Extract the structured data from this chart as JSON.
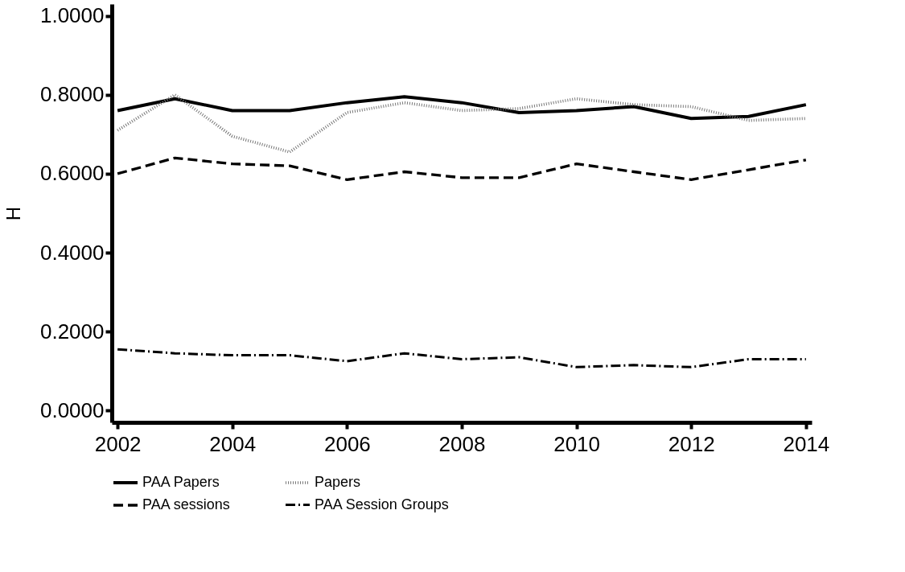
{
  "chart_data": {
    "type": "line",
    "ylabel": "H",
    "x": [
      2002,
      2003,
      2004,
      2005,
      2006,
      2007,
      2008,
      2009,
      2010,
      2011,
      2012,
      2013,
      2014
    ],
    "series": [
      {
        "name": "PAA Papers",
        "color": "#000000",
        "line_style": "solid",
        "values": [
          0.76,
          0.79,
          0.76,
          0.76,
          0.78,
          0.795,
          0.78,
          0.755,
          0.76,
          0.77,
          0.74,
          0.745,
          0.775
        ]
      },
      {
        "name": "Papers",
        "color": "#777777",
        "line_style": "dotted",
        "values": [
          0.71,
          0.8,
          0.695,
          0.655,
          0.755,
          0.78,
          0.76,
          0.765,
          0.79,
          0.775,
          0.77,
          0.735,
          0.74
        ]
      },
      {
        "name": "PAA sessions",
        "color": "#000000",
        "line_style": "dashed",
        "values": [
          0.6,
          0.64,
          0.625,
          0.62,
          0.585,
          0.605,
          0.59,
          0.59,
          0.625,
          0.605,
          0.585,
          0.61,
          0.635
        ]
      },
      {
        "name": "PAA Session Groups",
        "color": "#000000",
        "line_style": "dashdot",
        "values": [
          0.155,
          0.145,
          0.14,
          0.14,
          0.125,
          0.145,
          0.13,
          0.135,
          0.11,
          0.115,
          0.11,
          0.13,
          0.13
        ]
      }
    ],
    "xlim": [
      2001.9,
      2014.1
    ],
    "xticks": [
      2002,
      2004,
      2006,
      2008,
      2010,
      2012,
      2014
    ],
    "ylim": [
      -0.03,
      1.03
    ],
    "yticks": [
      {
        "value": 0,
        "label": "0.0000"
      },
      {
        "value": 0.2,
        "label": "0.2000"
      },
      {
        "value": 0.4,
        "label": "0.4000"
      },
      {
        "value": 0.6,
        "label": "0.6000"
      },
      {
        "value": 0.8,
        "label": "0.8000"
      },
      {
        "value": 1,
        "label": "1.0000"
      }
    ],
    "grid": false,
    "legend": "bottom",
    "marker": "none"
  }
}
